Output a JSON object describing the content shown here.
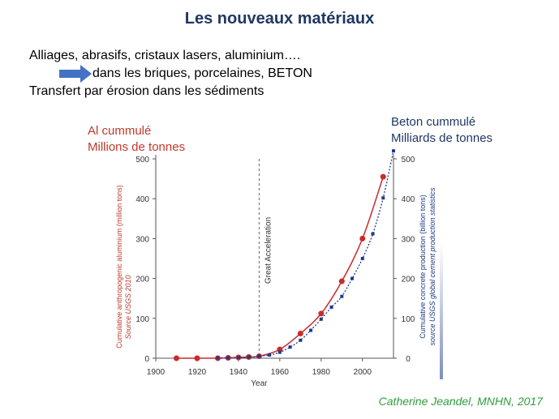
{
  "slide": {
    "title": "Les nouveaux matériaux",
    "line1": "Alliages, abrasifs, cristaux lasers, aluminium….",
    "line2": "dans les briques, porcelaines, BETON",
    "line3": "Transfert par érosion dans les sédiments",
    "arrow_icon": "right-arrow-icon",
    "al_label_1": "Al cummulé",
    "al_label_2": "Millions de tonnes",
    "beton_label_1": "Beton cummulé",
    "beton_label_2": "Milliards de tonnes",
    "credit": "Catherine Jeandel, MNHN, 2017"
  },
  "chart_data": {
    "type": "line",
    "xlabel": "Year",
    "ylabel_left": "Cumulative anthropogenic aluminium (million tons)",
    "ylabel_left_source": "Source USGS 2010",
    "ylabel_right": "Cumulative concrete production (billion tons)",
    "ylabel_right_source": "source USGS global cement production statistics",
    "annotation": "Great Acceleration",
    "annotation_x": 1950,
    "xlim": [
      1900,
      2015
    ],
    "ylim": [
      0,
      500
    ],
    "x_ticks": [
      1900,
      1920,
      1940,
      1960,
      1980,
      2000
    ],
    "y_ticks": [
      0,
      100,
      200,
      300,
      400,
      500
    ],
    "colors": {
      "aluminium": "#cc2a2a",
      "concrete": "#1f3a8a"
    },
    "series": [
      {
        "name": "Cumulative anthropogenic aluminium",
        "x": [
          1910,
          1920,
          1930,
          1935,
          1940,
          1945,
          1950,
          1960,
          1970,
          1980,
          1990,
          2000,
          2010
        ],
        "values": [
          0,
          0,
          0,
          1,
          2,
          3,
          5,
          22,
          62,
          112,
          193,
          300,
          455
        ]
      },
      {
        "name": "Cumulative concrete production",
        "x": [
          1930,
          1935,
          1940,
          1945,
          1950,
          1955,
          1960,
          1965,
          1970,
          1975,
          1980,
          1985,
          1990,
          1995,
          2000,
          2005,
          2010,
          2015
        ],
        "values": [
          1,
          1,
          2,
          3,
          5,
          8,
          15,
          28,
          45,
          70,
          98,
          128,
          155,
          200,
          250,
          312,
          402,
          520
        ]
      }
    ]
  }
}
